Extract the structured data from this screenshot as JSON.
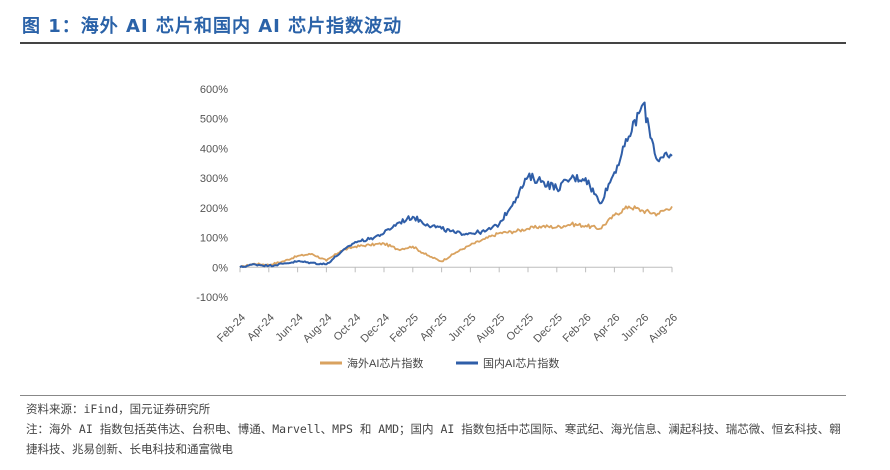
{
  "figure": {
    "title": "图 1：海外 AI 芯片和国内 AI 芯片指数波动",
    "source": "资料来源：iFind，国元证券研究所",
    "note": "注：海外 AI 指数包括英伟达、台积电、博通、Marvell、MPS 和 AMD；国内 AI 指数包括中芯国际、寒武纪、海光信息、澜起科技、瑞芯微、恒玄科技、翱捷科技、兆易创新、长电科技和通富微电"
  },
  "chart_data": {
    "type": "line",
    "title": "",
    "xlabel": "",
    "ylabel": "",
    "x_ticks": [
      "Feb-24",
      "Apr-24",
      "Jun-24",
      "Aug-24",
      "Oct-24",
      "Dec-24",
      "Feb-25",
      "Apr-25",
      "Jun-25",
      "Aug-25",
      "Oct-25",
      "Dec-25",
      "Feb-26",
      "Apr-26",
      "Jun-26",
      "Aug-26"
    ],
    "y_ticks": [
      "-100%",
      "0%",
      "100%",
      "200%",
      "300%",
      "400%",
      "500%",
      "600%"
    ],
    "ylim": [
      -100,
      600
    ],
    "y_unit": "%",
    "grid": false,
    "legend_position": "bottom",
    "series": [
      {
        "name": "海外AI芯片指数",
        "color": "#d9a25f",
        "x": [
          "2024-02",
          "2024-03",
          "2024-04",
          "2024-05",
          "2024-06",
          "2024-07",
          "2024-08",
          "2024-09",
          "2024-10",
          "2024-11",
          "2024-12",
          "2025-01",
          "2025-02",
          "2025-03",
          "2025-04",
          "2025-05",
          "2025-06",
          "2025-07",
          "2025-08",
          "2025-09",
          "2025-10",
          "2025-11",
          "2025-12",
          "2026-01",
          "2026-02",
          "2026-03",
          "2026-04",
          "2026-05",
          "2026-06",
          "2026-07",
          "2026-08"
        ],
        "values": [
          0,
          12,
          8,
          20,
          38,
          45,
          22,
          55,
          70,
          75,
          80,
          60,
          70,
          40,
          20,
          50,
          75,
          95,
          115,
          120,
          130,
          138,
          135,
          145,
          140,
          130,
          175,
          205,
          190,
          180,
          205
        ]
      },
      {
        "name": "国内AI芯片指数",
        "color": "#2f5ea8",
        "x": [
          "2024-02",
          "2024-03",
          "2024-04",
          "2024-05",
          "2024-06",
          "2024-07",
          "2024-08",
          "2024-09",
          "2024-10",
          "2024-11",
          "2024-12",
          "2025-01",
          "2025-02",
          "2025-03",
          "2025-04",
          "2025-05",
          "2025-06",
          "2025-07",
          "2025-08",
          "2025-09",
          "2025-10",
          "2025-11",
          "2025-12",
          "2026-01",
          "2026-02",
          "2026-03",
          "2026-04",
          "2026-05",
          "2026-06",
          "2026-07",
          "2026-08"
        ],
        "values": [
          0,
          10,
          5,
          12,
          20,
          15,
          10,
          50,
          85,
          95,
          115,
          150,
          170,
          145,
          130,
          115,
          115,
          120,
          145,
          220,
          305,
          290,
          265,
          300,
          300,
          215,
          320,
          440,
          550,
          360,
          375
        ]
      }
    ]
  }
}
